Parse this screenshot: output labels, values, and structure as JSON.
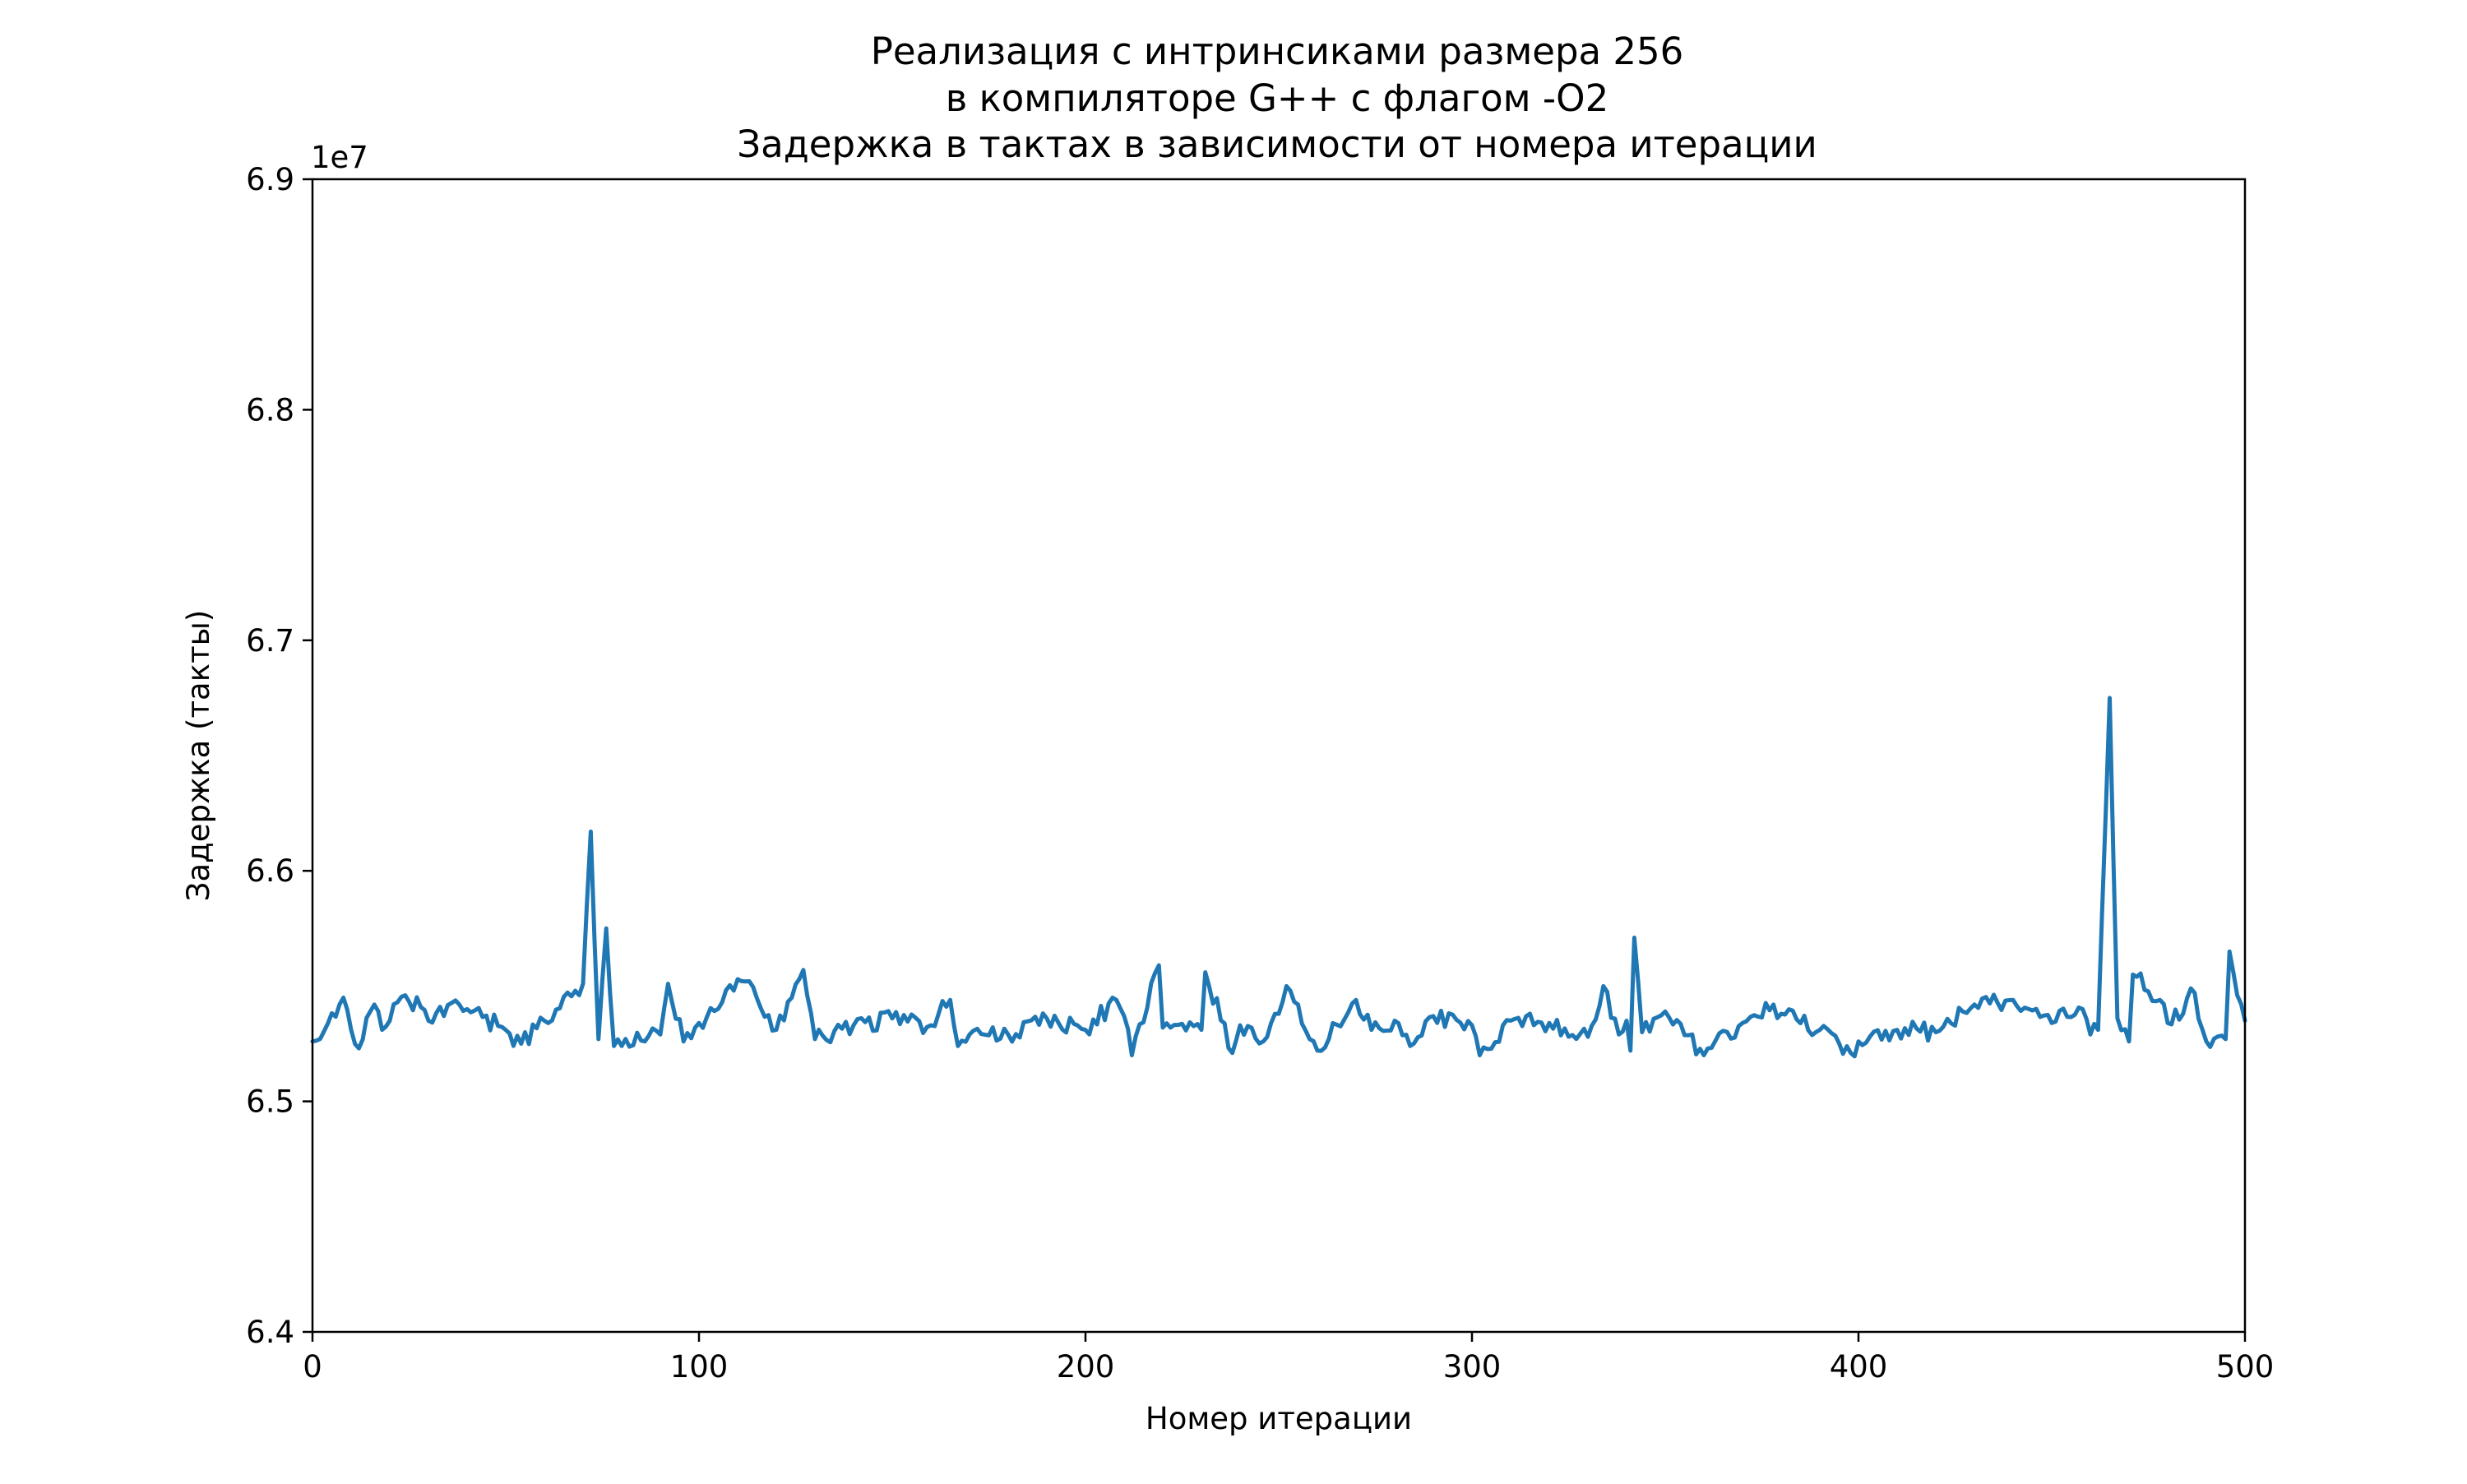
{
  "chart_data": {
    "type": "line",
    "title_lines": [
      "Реализация с интринсиками размера 256",
      "в компиляторе G++ с флагом -O2",
      "Задержка в тактах в зависимости от номера итерации"
    ],
    "xlabel": "Номер итерации",
    "ylabel": "Задержка (такты)",
    "y_offset_label": "1e7",
    "xlim": [
      0,
      500
    ],
    "ylim": [
      6.4,
      6.9
    ],
    "x_ticks": [
      0,
      100,
      200,
      300,
      400,
      500
    ],
    "x_tick_labels": [
      "0",
      "100",
      "200",
      "300",
      "400",
      "500"
    ],
    "y_ticks": [
      6.4,
      6.5,
      6.6,
      6.7,
      6.8,
      6.9
    ],
    "y_tick_labels": [
      "6.4",
      "6.5",
      "6.6",
      "6.7",
      "6.8",
      "6.9"
    ],
    "grid": false,
    "line_color": "#1f77b4",
    "series": [
      {
        "x_start": 0,
        "x_step": 10,
        "values": [
          6.526,
          6.531,
          6.535,
          6.535,
          6.54,
          6.531,
          6.535,
          6.551,
          6.524,
          6.529,
          6.534,
          6.553,
          6.531,
          6.527,
          6.533,
          6.536,
          6.533,
          6.529,
          6.529,
          6.536,
          6.531,
          6.537,
          6.532,
          6.531,
          6.533,
          6.538,
          6.522,
          6.53,
          6.535,
          6.537,
          6.533,
          6.535,
          6.534,
          6.528,
          6.535,
          6.539,
          6.52,
          6.534,
          6.538,
          6.531,
          6.526,
          6.531,
          6.53,
          6.532,
          6.531,
          6.534,
          6.529,
          6.526,
          6.534,
          6.537,
          6.535
        ]
      },
      {
        "points": [
          [
            8,
            6.545
          ],
          [
            12,
            6.523
          ],
          [
            16,
            6.542
          ],
          [
            18,
            6.531
          ],
          [
            22,
            6.543
          ],
          [
            28,
            6.541
          ],
          [
            38,
            6.542
          ],
          [
            54,
            6.525
          ],
          [
            68,
            6.548
          ],
          [
            72,
            6.617
          ],
          [
            74,
            6.527
          ],
          [
            76,
            6.575
          ],
          [
            78,
            6.524
          ],
          [
            92,
            6.551
          ],
          [
            96,
            6.526
          ],
          [
            106,
            6.543
          ],
          [
            112,
            6.552
          ],
          [
            127,
            6.557
          ],
          [
            165,
            6.544
          ],
          [
            167,
            6.524
          ],
          [
            208,
            6.544
          ],
          [
            212,
            6.52
          ],
          [
            219,
            6.559
          ],
          [
            222,
            6.532
          ],
          [
            231,
            6.556
          ],
          [
            238,
            6.521
          ],
          [
            246,
            6.526
          ],
          [
            252,
            6.55
          ],
          [
            258,
            6.527
          ],
          [
            270,
            6.544
          ],
          [
            274,
            6.531
          ],
          [
            284,
            6.524
          ],
          [
            302,
            6.52
          ],
          [
            334,
            6.55
          ],
          [
            338,
            6.529
          ],
          [
            341,
            6.522
          ],
          [
            342,
            6.571
          ],
          [
            344,
            6.53
          ],
          [
            378,
            6.542
          ],
          [
            398,
            6.521
          ],
          [
            430,
            6.542
          ],
          [
            440,
            6.544
          ],
          [
            458,
            6.54
          ],
          [
            462,
            6.531
          ],
          [
            465,
            6.675
          ],
          [
            467,
            6.536
          ],
          [
            471,
            6.555
          ],
          [
            478,
            6.544
          ],
          [
            484,
            6.538
          ],
          [
            486,
            6.549
          ],
          [
            490,
            6.526
          ],
          [
            495,
            6.527
          ],
          [
            496,
            6.565
          ],
          [
            498,
            6.546
          ]
        ]
      }
    ]
  }
}
